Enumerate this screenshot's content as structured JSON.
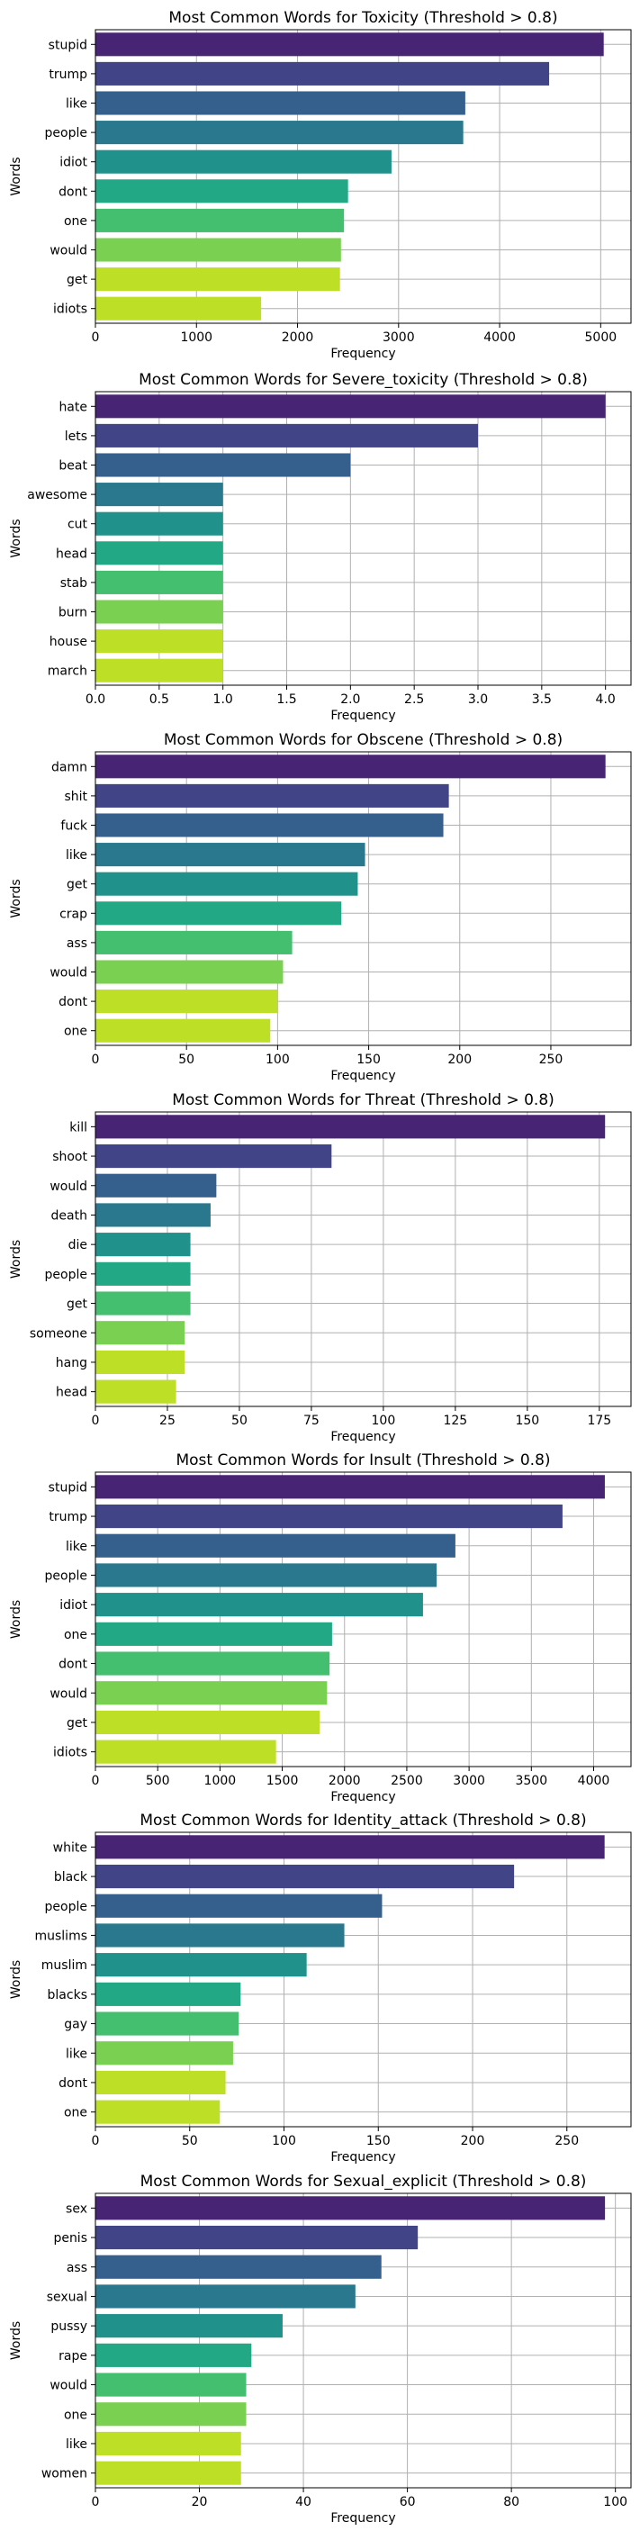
{
  "colors": [
    "#482475",
    "#414487",
    "#355f8d",
    "#2a788e",
    "#21918c",
    "#22a884",
    "#44bf70",
    "#7ad151",
    "#bddf26"
  ],
  "chart_data": [
    {
      "type": "bar",
      "orientation": "horizontal",
      "title": "Most Common Words for Toxicity (Threshold > 0.8)",
      "xlabel": "Frequency",
      "ylabel": "Words",
      "categories": [
        "stupid",
        "trump",
        "like",
        "people",
        "idiot",
        "dont",
        "one",
        "would",
        "get",
        "idiots"
      ],
      "values": [
        5030,
        4490,
        3660,
        3640,
        2930,
        2500,
        2460,
        2430,
        2420,
        1640
      ],
      "xlim": [
        0,
        5300
      ],
      "xticks": [
        0,
        1000,
        2000,
        3000,
        4000,
        5000
      ],
      "xtick_labels": [
        "0",
        "1000",
        "2000",
        "3000",
        "4000",
        "5000"
      ],
      "grid": true,
      "legend": "none"
    },
    {
      "type": "bar",
      "orientation": "horizontal",
      "title": "Most Common Words for Severe_toxicity (Threshold > 0.8)",
      "xlabel": "Frequency",
      "ylabel": "Words",
      "categories": [
        "hate",
        "lets",
        "beat",
        "awesome",
        "cut",
        "head",
        "stab",
        "burn",
        "house",
        "march"
      ],
      "values": [
        4,
        3,
        2,
        1,
        1,
        1,
        1,
        1,
        1,
        1
      ],
      "xlim": [
        0,
        4.2
      ],
      "xticks": [
        0,
        0.5,
        1,
        1.5,
        2,
        2.5,
        3,
        3.5,
        4
      ],
      "xtick_labels": [
        "0.0",
        "0.5",
        "1.0",
        "1.5",
        "2.0",
        "2.5",
        "3.0",
        "3.5",
        "4.0"
      ],
      "grid": true,
      "legend": "none"
    },
    {
      "type": "bar",
      "orientation": "horizontal",
      "title": "Most Common Words for Obscene (Threshold > 0.8)",
      "xlabel": "Frequency",
      "ylabel": "Words",
      "categories": [
        "damn",
        "shit",
        "fuck",
        "like",
        "get",
        "crap",
        "ass",
        "would",
        "dont",
        "one"
      ],
      "values": [
        280,
        194,
        191,
        148,
        144,
        135,
        108,
        103,
        100,
        96
      ],
      "xlim": [
        0,
        294
      ],
      "xticks": [
        0,
        50,
        100,
        150,
        200,
        250
      ],
      "xtick_labels": [
        "0",
        "50",
        "100",
        "150",
        "200",
        "250"
      ],
      "grid": true,
      "legend": "none"
    },
    {
      "type": "bar",
      "orientation": "horizontal",
      "title": "Most Common Words for Threat (Threshold > 0.8)",
      "xlabel": "Frequency",
      "ylabel": "Words",
      "categories": [
        "kill",
        "shoot",
        "would",
        "death",
        "die",
        "people",
        "get",
        "someone",
        "hang",
        "head"
      ],
      "values": [
        177,
        82,
        42,
        40,
        33,
        33,
        33,
        31,
        31,
        28
      ],
      "xlim": [
        0,
        186
      ],
      "xticks": [
        0,
        25,
        50,
        75,
        100,
        125,
        150,
        175
      ],
      "xtick_labels": [
        "0",
        "25",
        "50",
        "75",
        "100",
        "125",
        "150",
        "175"
      ],
      "grid": true,
      "legend": "none"
    },
    {
      "type": "bar",
      "orientation": "horizontal",
      "title": "Most Common Words for Insult (Threshold > 0.8)",
      "xlabel": "Frequency",
      "ylabel": "Words",
      "categories": [
        "stupid",
        "trump",
        "like",
        "people",
        "idiot",
        "one",
        "dont",
        "would",
        "get",
        "idiots"
      ],
      "values": [
        4090,
        3750,
        2890,
        2740,
        2630,
        1900,
        1880,
        1860,
        1800,
        1450
      ],
      "xlim": [
        0,
        4300
      ],
      "xticks": [
        0,
        500,
        1000,
        1500,
        2000,
        2500,
        3000,
        3500,
        4000
      ],
      "xtick_labels": [
        "0",
        "500",
        "1000",
        "1500",
        "2000",
        "2500",
        "3000",
        "3500",
        "4000"
      ],
      "grid": true,
      "legend": "none"
    },
    {
      "type": "bar",
      "orientation": "horizontal",
      "title": "Most Common Words for Identity_attack (Threshold > 0.8)",
      "xlabel": "Frequency",
      "ylabel": "Words",
      "categories": [
        "white",
        "black",
        "people",
        "muslims",
        "muslim",
        "blacks",
        "gay",
        "like",
        "dont",
        "one"
      ],
      "values": [
        270,
        222,
        152,
        132,
        112,
        77,
        76,
        73,
        69,
        66
      ],
      "xlim": [
        0,
        284
      ],
      "xticks": [
        0,
        50,
        100,
        150,
        200,
        250
      ],
      "xtick_labels": [
        "0",
        "50",
        "100",
        "150",
        "200",
        "250"
      ],
      "grid": true,
      "legend": "none"
    },
    {
      "type": "bar",
      "orientation": "horizontal",
      "title": "Most Common Words for Sexual_explicit (Threshold > 0.8)",
      "xlabel": "Frequency",
      "ylabel": "Words",
      "categories": [
        "sex",
        "penis",
        "ass",
        "sexual",
        "pussy",
        "rape",
        "would",
        "one",
        "like",
        "women"
      ],
      "values": [
        98,
        62,
        55,
        50,
        36,
        30,
        29,
        29,
        28,
        28
      ],
      "xlim": [
        0,
        103
      ],
      "xticks": [
        0,
        20,
        40,
        60,
        80,
        100
      ],
      "xtick_labels": [
        "0",
        "20",
        "40",
        "60",
        "80",
        "100"
      ],
      "grid": true,
      "legend": "none"
    }
  ]
}
